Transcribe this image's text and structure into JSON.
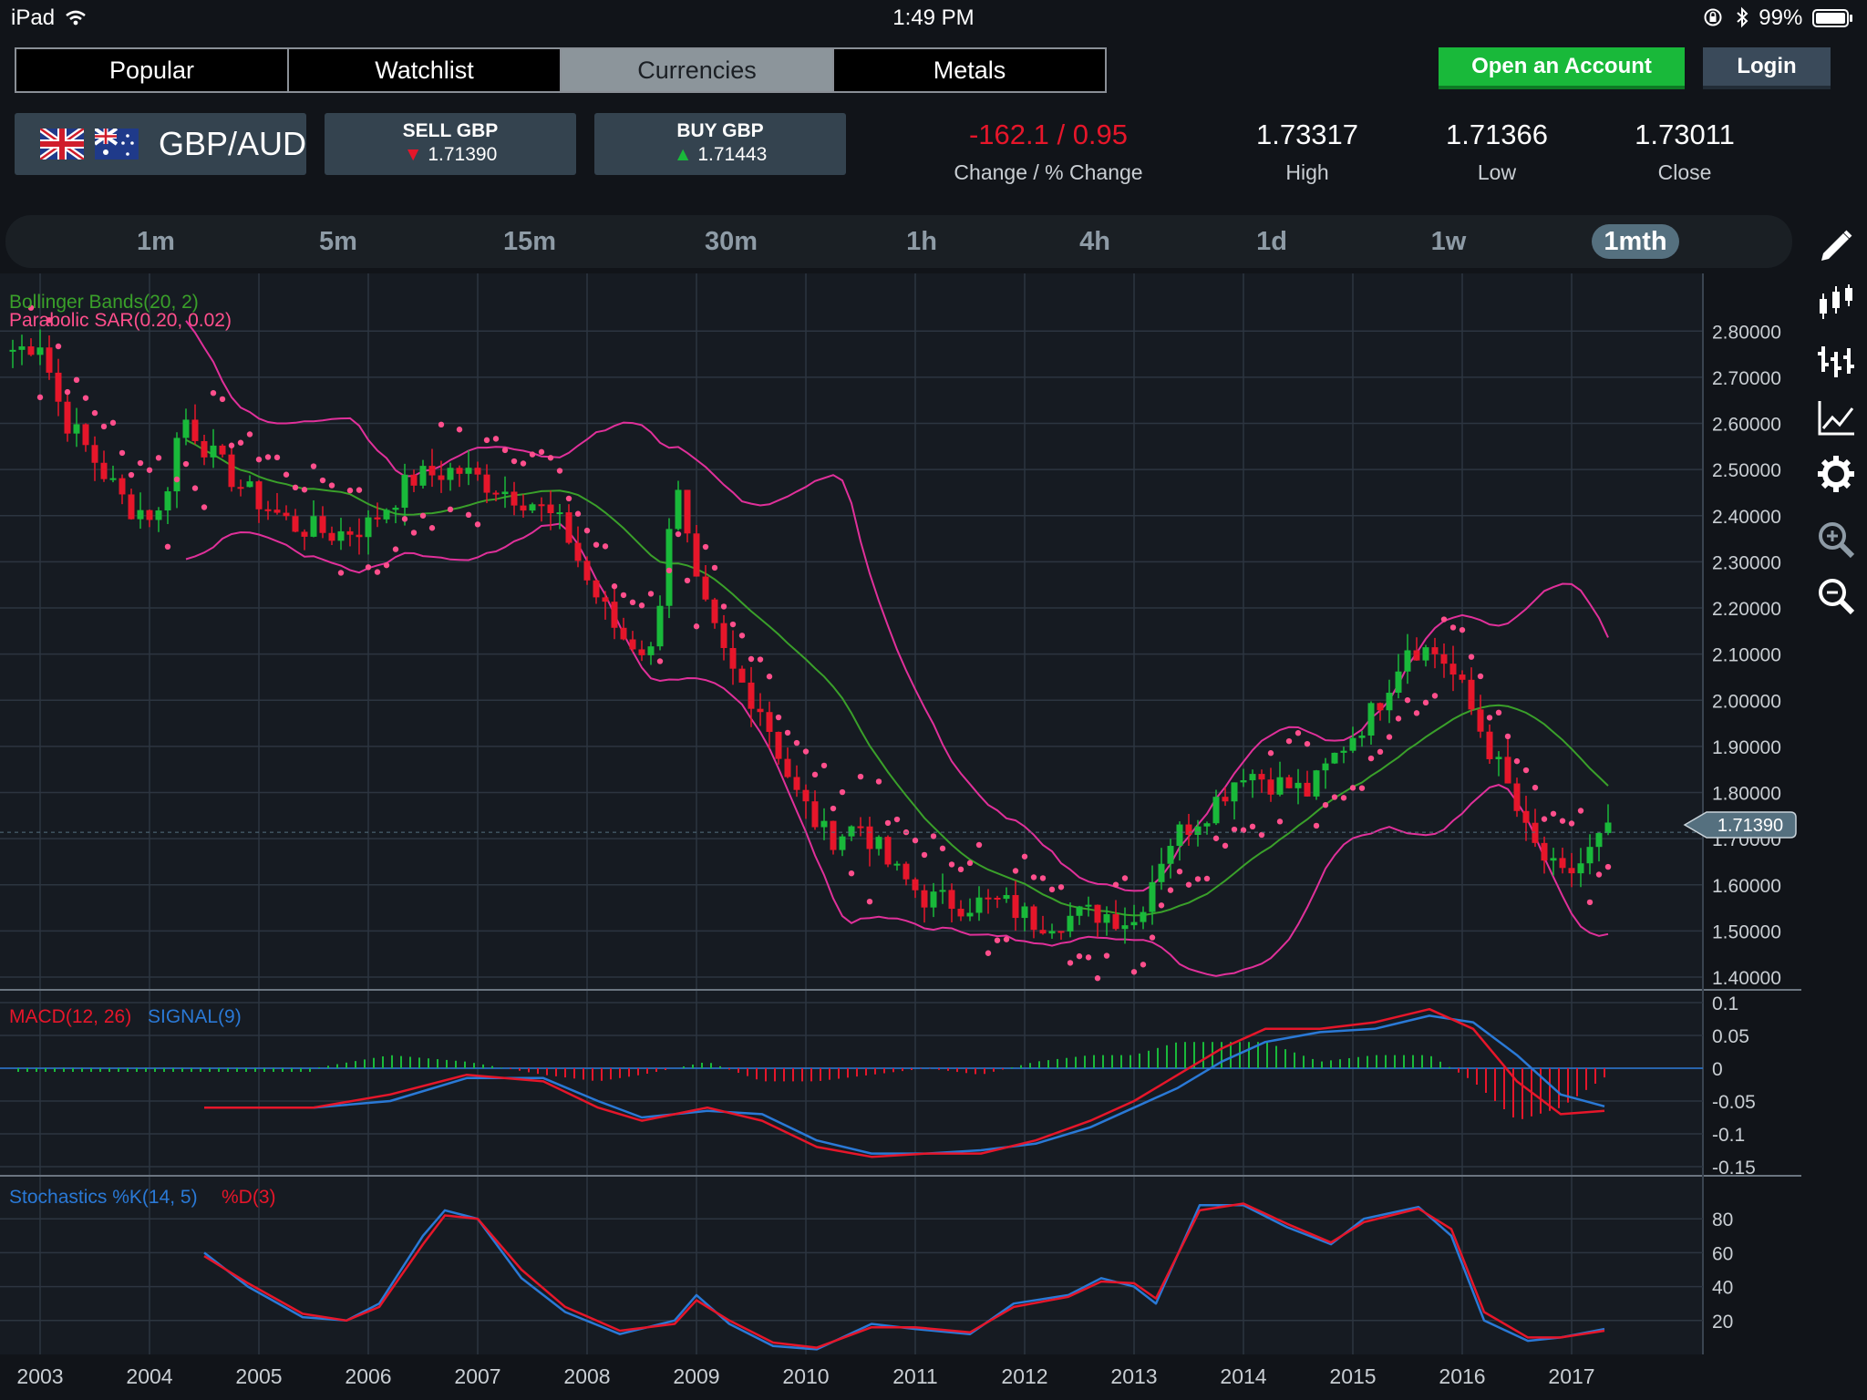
{
  "status_bar": {
    "device": "iPad",
    "time": "1:49 PM",
    "battery": "99%",
    "icons": [
      "wifi-icon",
      "rotation-lock-icon",
      "bluetooth-icon",
      "battery-icon"
    ]
  },
  "nav_tabs": [
    {
      "label": "Popular",
      "active": false
    },
    {
      "label": "Watchlist",
      "active": false
    },
    {
      "label": "Currencies",
      "active": true
    },
    {
      "label": "Metals",
      "active": false
    }
  ],
  "buttons": {
    "open_account": "Open an Account",
    "login": "Login"
  },
  "instrument": {
    "pair": "GBP/AUD",
    "sell": {
      "label": "SELL GBP",
      "price": "1.71390"
    },
    "buy": {
      "label": "BUY GBP",
      "price": "1.71443"
    },
    "change": "-162.1 / 0.95",
    "change_label": "Change / % Change",
    "high": "1.73317",
    "high_label": "High",
    "low": "1.71366",
    "low_label": "Low",
    "close": "1.73011",
    "close_label": "Close"
  },
  "timeframes": [
    {
      "label": "1m",
      "active": false
    },
    {
      "label": "5m",
      "active": false
    },
    {
      "label": "15m",
      "active": false
    },
    {
      "label": "30m",
      "active": false
    },
    {
      "label": "1h",
      "active": false
    },
    {
      "label": "4h",
      "active": false
    },
    {
      "label": "1d",
      "active": false
    },
    {
      "label": "1w",
      "active": false
    },
    {
      "label": "1mth",
      "active": true
    }
  ],
  "side_tools": [
    "pencil-icon",
    "candlestick-icon",
    "bar-chart-icon",
    "line-chart-icon",
    "gear-icon",
    "zoom-in-icon",
    "zoom-out-icon"
  ],
  "colors": {
    "up": "#19b93a",
    "down": "#e6162a",
    "bb_band": "#e0309a",
    "bb_mid": "#3aa02a",
    "sar": "#ff4f8c",
    "macd": "#e6162a",
    "signal": "#2a79d6",
    "stoch_k": "#2a79d6",
    "stoch_d": "#e6162a"
  },
  "chart_data": [
    {
      "type": "candlestick",
      "title": "",
      "indicators": [
        "Bollinger Bands(20, 2)",
        "Parabolic SAR(0.20, 0.02)"
      ],
      "x_ticks": [
        "2003",
        "2004",
        "2005",
        "2006",
        "2007",
        "2008",
        "2009",
        "2010",
        "2011",
        "2012",
        "2013",
        "2014",
        "2015",
        "2016",
        "2017"
      ],
      "y_ticks": [
        "2.80000",
        "2.70000",
        "2.60000",
        "2.50000",
        "2.40000",
        "2.30000",
        "2.20000",
        "2.10000",
        "2.00000",
        "1.90000",
        "1.80000",
        "1.70000",
        "1.60000",
        "1.50000",
        "1.40000"
      ],
      "ylim": [
        1.4,
        2.85
      ],
      "current_price": "1.71390",
      "close_series": [
        {
          "t": 2002.8,
          "v": 2.76
        },
        {
          "t": 2003.0,
          "v": 2.78
        },
        {
          "t": 2003.2,
          "v": 2.62
        },
        {
          "t": 2003.5,
          "v": 2.52
        },
        {
          "t": 2003.8,
          "v": 2.42
        },
        {
          "t": 2004.1,
          "v": 2.4
        },
        {
          "t": 2004.3,
          "v": 2.62
        },
        {
          "t": 2004.6,
          "v": 2.52
        },
        {
          "t": 2004.9,
          "v": 2.45
        },
        {
          "t": 2005.3,
          "v": 2.38
        },
        {
          "t": 2005.7,
          "v": 2.36
        },
        {
          "t": 2006.0,
          "v": 2.38
        },
        {
          "t": 2006.4,
          "v": 2.48
        },
        {
          "t": 2006.8,
          "v": 2.5
        },
        {
          "t": 2007.1,
          "v": 2.47
        },
        {
          "t": 2007.5,
          "v": 2.43
        },
        {
          "t": 2007.8,
          "v": 2.37
        },
        {
          "t": 2008.0,
          "v": 2.26
        },
        {
          "t": 2008.3,
          "v": 2.14
        },
        {
          "t": 2008.6,
          "v": 2.1
        },
        {
          "t": 2008.8,
          "v": 2.48
        },
        {
          "t": 2009.0,
          "v": 2.24
        },
        {
          "t": 2009.3,
          "v": 2.07
        },
        {
          "t": 2009.6,
          "v": 1.98
        },
        {
          "t": 2009.9,
          "v": 1.8
        },
        {
          "t": 2010.2,
          "v": 1.7
        },
        {
          "t": 2010.5,
          "v": 1.73
        },
        {
          "t": 2010.8,
          "v": 1.63
        },
        {
          "t": 2011.1,
          "v": 1.57
        },
        {
          "t": 2011.4,
          "v": 1.56
        },
        {
          "t": 2011.8,
          "v": 1.56
        },
        {
          "t": 2012.1,
          "v": 1.52
        },
        {
          "t": 2012.4,
          "v": 1.53
        },
        {
          "t": 2012.7,
          "v": 1.54
        },
        {
          "t": 2013.0,
          "v": 1.52
        },
        {
          "t": 2013.3,
          "v": 1.69
        },
        {
          "t": 2013.7,
          "v": 1.77
        },
        {
          "t": 2014.0,
          "v": 1.85
        },
        {
          "t": 2014.3,
          "v": 1.82
        },
        {
          "t": 2014.6,
          "v": 1.8
        },
        {
          "t": 2014.9,
          "v": 1.9
        },
        {
          "t": 2015.2,
          "v": 1.98
        },
        {
          "t": 2015.5,
          "v": 2.12
        },
        {
          "t": 2015.8,
          "v": 2.1
        },
        {
          "t": 2016.0,
          "v": 2.02
        },
        {
          "t": 2016.2,
          "v": 1.92
        },
        {
          "t": 2016.4,
          "v": 1.82
        },
        {
          "t": 2016.6,
          "v": 1.7
        },
        {
          "t": 2016.9,
          "v": 1.61
        },
        {
          "t": 2017.1,
          "v": 1.65
        },
        {
          "t": 2017.3,
          "v": 1.71
        }
      ]
    },
    {
      "type": "line",
      "title": "",
      "indicators": [
        "MACD(12, 26)",
        "SIGNAL(9)"
      ],
      "y_ticks": [
        "0.1",
        "0.05",
        "0",
        "-0.05",
        "-0.1",
        "-0.15"
      ],
      "ylim": [
        -0.15,
        0.1
      ],
      "series": [
        {
          "name": "MACD(12, 26)",
          "points": [
            [
              2004.5,
              -0.06
            ],
            [
              2005.5,
              -0.06
            ],
            [
              2006.2,
              -0.04
            ],
            [
              2006.9,
              -0.01
            ],
            [
              2007.6,
              -0.02
            ],
            [
              2008.1,
              -0.06
            ],
            [
              2008.5,
              -0.08
            ],
            [
              2009.1,
              -0.06
            ],
            [
              2009.6,
              -0.08
            ],
            [
              2010.1,
              -0.12
            ],
            [
              2010.6,
              -0.135
            ],
            [
              2011.1,
              -0.13
            ],
            [
              2011.6,
              -0.13
            ],
            [
              2012.1,
              -0.11
            ],
            [
              2012.6,
              -0.08
            ],
            [
              2013.0,
              -0.05
            ],
            [
              2013.4,
              -0.01
            ],
            [
              2013.8,
              0.03
            ],
            [
              2014.2,
              0.06
            ],
            [
              2014.7,
              0.06
            ],
            [
              2015.2,
              0.07
            ],
            [
              2015.7,
              0.09
            ],
            [
              2016.1,
              0.06
            ],
            [
              2016.5,
              -0.02
            ],
            [
              2016.9,
              -0.07
            ],
            [
              2017.3,
              -0.065
            ]
          ]
        },
        {
          "name": "SIGNAL(9)",
          "points": [
            [
              2004.5,
              -0.06
            ],
            [
              2005.5,
              -0.06
            ],
            [
              2006.2,
              -0.05
            ],
            [
              2006.9,
              -0.015
            ],
            [
              2007.6,
              -0.015
            ],
            [
              2008.1,
              -0.05
            ],
            [
              2008.5,
              -0.075
            ],
            [
              2009.1,
              -0.065
            ],
            [
              2009.6,
              -0.07
            ],
            [
              2010.1,
              -0.11
            ],
            [
              2010.6,
              -0.13
            ],
            [
              2011.1,
              -0.13
            ],
            [
              2011.6,
              -0.125
            ],
            [
              2012.1,
              -0.115
            ],
            [
              2012.6,
              -0.09
            ],
            [
              2013.0,
              -0.06
            ],
            [
              2013.4,
              -0.03
            ],
            [
              2013.8,
              0.01
            ],
            [
              2014.2,
              0.04
            ],
            [
              2014.7,
              0.055
            ],
            [
              2015.2,
              0.06
            ],
            [
              2015.7,
              0.08
            ],
            [
              2016.1,
              0.07
            ],
            [
              2016.5,
              0.02
            ],
            [
              2016.9,
              -0.04
            ],
            [
              2017.3,
              -0.058
            ]
          ]
        }
      ]
    },
    {
      "type": "line",
      "title": "",
      "indicators": [
        "Stochastics %K(14, 5)",
        "%D(3)"
      ],
      "y_ticks": [
        "80",
        "60",
        "40",
        "20"
      ],
      "ylim": [
        0,
        100
      ],
      "series": [
        {
          "name": "%K(14, 5)",
          "points": [
            [
              2004.5,
              60
            ],
            [
              2004.9,
              40
            ],
            [
              2005.4,
              22
            ],
            [
              2005.8,
              20
            ],
            [
              2006.1,
              30
            ],
            [
              2006.5,
              70
            ],
            [
              2006.7,
              85
            ],
            [
              2007.0,
              80
            ],
            [
              2007.4,
              45
            ],
            [
              2007.8,
              25
            ],
            [
              2008.3,
              12
            ],
            [
              2008.8,
              20
            ],
            [
              2009.0,
              35
            ],
            [
              2009.3,
              18
            ],
            [
              2009.7,
              5
            ],
            [
              2010.1,
              3
            ],
            [
              2010.6,
              18
            ],
            [
              2011.0,
              15
            ],
            [
              2011.5,
              12
            ],
            [
              2011.9,
              30
            ],
            [
              2012.4,
              35
            ],
            [
              2012.7,
              45
            ],
            [
              2013.0,
              40
            ],
            [
              2013.2,
              30
            ],
            [
              2013.6,
              88
            ],
            [
              2014.0,
              88
            ],
            [
              2014.4,
              75
            ],
            [
              2014.8,
              65
            ],
            [
              2015.1,
              80
            ],
            [
              2015.6,
              87
            ],
            [
              2015.9,
              70
            ],
            [
              2016.2,
              20
            ],
            [
              2016.6,
              8
            ],
            [
              2016.9,
              10
            ],
            [
              2017.3,
              15
            ]
          ]
        },
        {
          "name": "%D(3)",
          "points": [
            [
              2004.5,
              58
            ],
            [
              2004.9,
              42
            ],
            [
              2005.4,
              24
            ],
            [
              2005.8,
              20
            ],
            [
              2006.1,
              28
            ],
            [
              2006.5,
              65
            ],
            [
              2006.7,
              82
            ],
            [
              2007.0,
              80
            ],
            [
              2007.4,
              50
            ],
            [
              2007.8,
              28
            ],
            [
              2008.3,
              14
            ],
            [
              2008.8,
              18
            ],
            [
              2009.0,
              32
            ],
            [
              2009.3,
              20
            ],
            [
              2009.7,
              7
            ],
            [
              2010.1,
              4
            ],
            [
              2010.6,
              16
            ],
            [
              2011.0,
              16
            ],
            [
              2011.5,
              13
            ],
            [
              2011.9,
              28
            ],
            [
              2012.4,
              34
            ],
            [
              2012.7,
              43
            ],
            [
              2013.0,
              42
            ],
            [
              2013.2,
              33
            ],
            [
              2013.6,
              85
            ],
            [
              2014.0,
              89
            ],
            [
              2014.4,
              77
            ],
            [
              2014.8,
              66
            ],
            [
              2015.1,
              78
            ],
            [
              2015.6,
              86
            ],
            [
              2015.9,
              74
            ],
            [
              2016.2,
              25
            ],
            [
              2016.6,
              10
            ],
            [
              2016.9,
              10
            ],
            [
              2017.3,
              14
            ]
          ]
        }
      ]
    }
  ]
}
